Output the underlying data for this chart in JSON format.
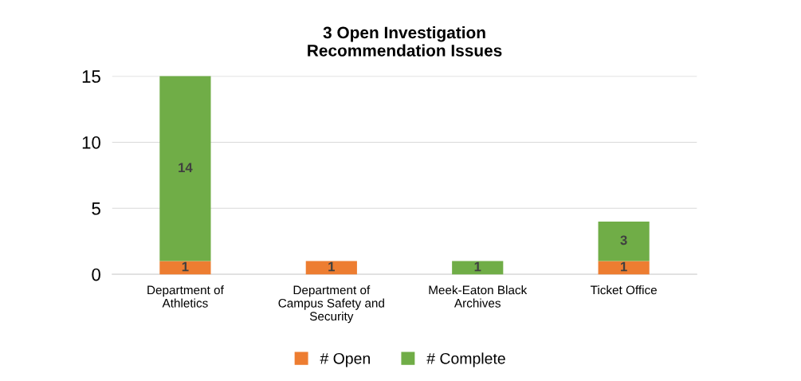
{
  "chart_data": {
    "type": "bar",
    "title": "3 Open Investigation\nRecommendation Issues",
    "categories": [
      "Department of\nAthletics",
      "Department of\nCampus Safety and\nSecurity",
      "Meek-Eaton Black\nArchives",
      "Ticket Office"
    ],
    "stacked": true,
    "series": [
      {
        "name": "# Open",
        "color": "#ed7d31",
        "values": [
          1,
          1,
          null,
          1
        ]
      },
      {
        "name": "# Complete",
        "color": "#70ad47",
        "values": [
          14,
          null,
          1,
          3
        ]
      }
    ],
    "data_labels": true,
    "ylim": [
      0,
      15
    ],
    "yticks": [
      0,
      5,
      10,
      15
    ],
    "grid": "y",
    "legend": "bottom"
  }
}
